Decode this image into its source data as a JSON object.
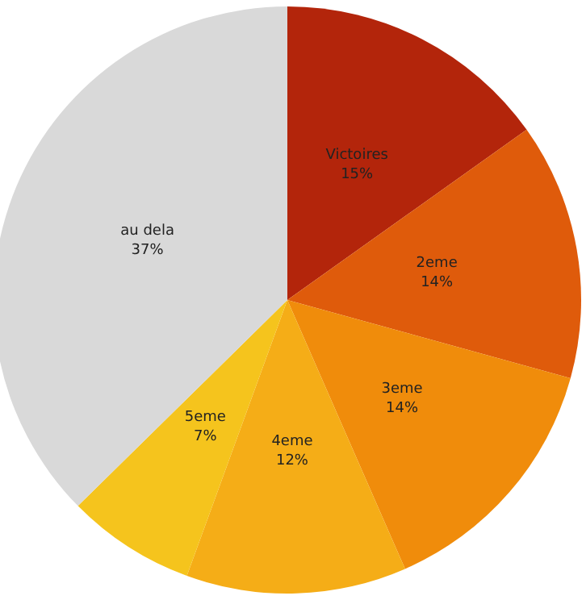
{
  "chart_data": {
    "type": "pie",
    "categories": [
      "Victoires",
      "2eme",
      "3eme",
      "4eme",
      "5eme",
      "au dela"
    ],
    "values": [
      15,
      14,
      14,
      12,
      7,
      37
    ],
    "value_labels": [
      "15%",
      "14%",
      "14%",
      "12%",
      "7%",
      "37%"
    ],
    "colors": [
      "#b3250b",
      "#df5b0b",
      "#f08c0b",
      "#f5ad17",
      "#f5c41d",
      "#d9d9d9"
    ],
    "legend": false
  }
}
